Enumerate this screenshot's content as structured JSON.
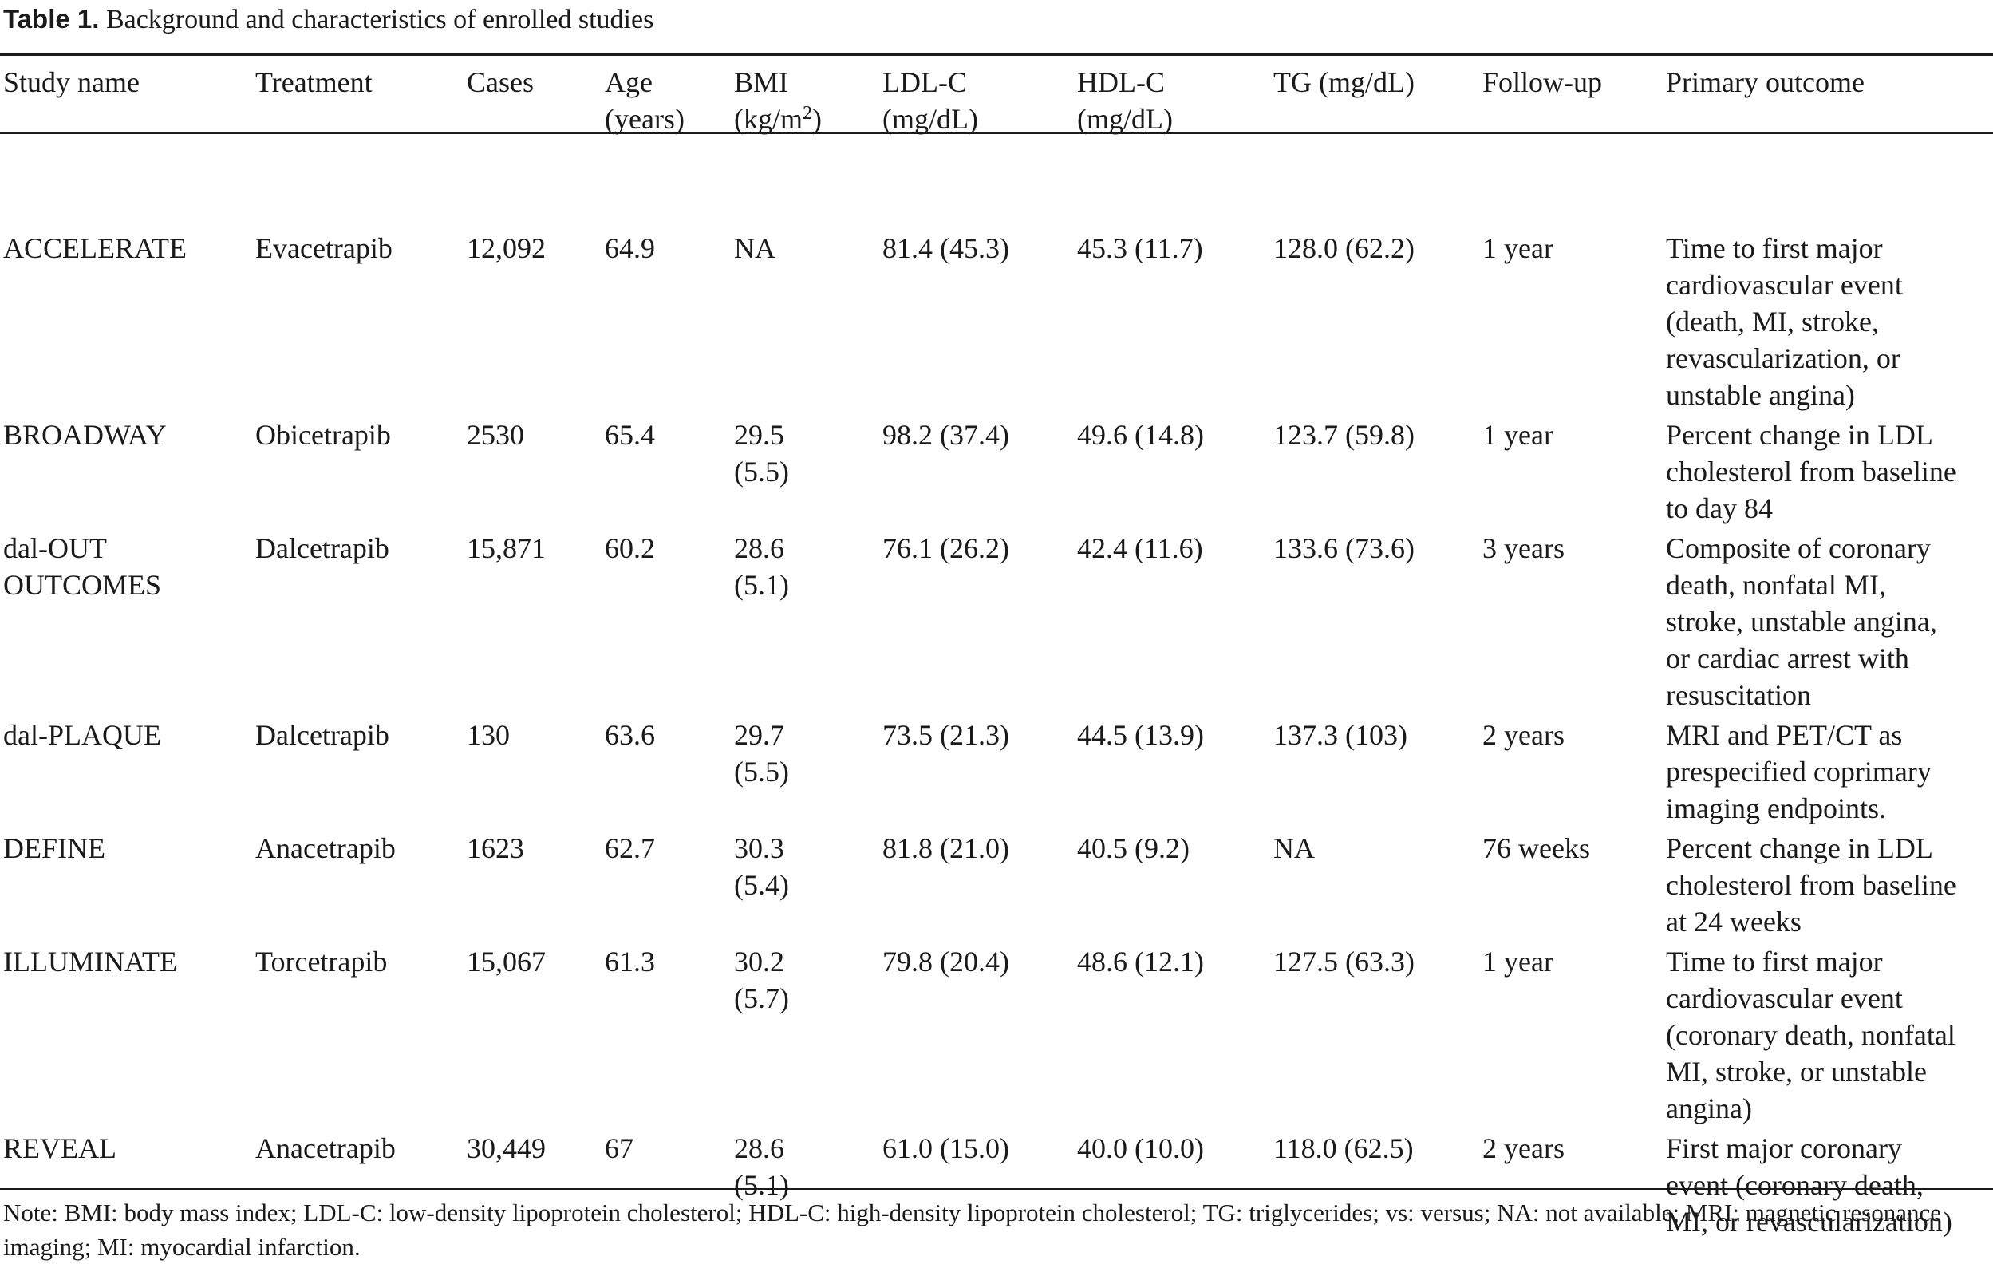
{
  "caption": {
    "label": "Table 1.",
    "title": "Background and characteristics of enrolled studies"
  },
  "columns": [
    {
      "line1": "Study name",
      "line2": ""
    },
    {
      "line1": "Treatment",
      "line2": ""
    },
    {
      "line1": "Cases",
      "line2": ""
    },
    {
      "line1": "Age",
      "line2": "(years)"
    },
    {
      "line1": "BMI",
      "line2": "(kg/m",
      "sup": "2",
      "line2_end": ")"
    },
    {
      "line1": "LDL-C",
      "line2": "(mg/dL)"
    },
    {
      "line1": "HDL-C",
      "line2": "(mg/dL)"
    },
    {
      "line1": "TG (mg/dL)",
      "line2": ""
    },
    {
      "line1": "Follow-up",
      "line2": ""
    },
    {
      "line1": "Primary outcome",
      "line2": ""
    }
  ],
  "rows": [
    {
      "study": [
        "ACCELERATE"
      ],
      "treatment": "Evacetrapib",
      "cases": "12,092",
      "age": "64.9",
      "bmi": [
        "NA"
      ],
      "ldl": "81.4 (45.3)",
      "hdl": "45.3 (11.7)",
      "tg": "128.0 (62.2)",
      "followup": "1 year",
      "outcome": [
        "Time to first major",
        "cardiovascular event",
        "(death, MI, stroke,",
        "revascularization, or",
        "unstable angina)"
      ]
    },
    {
      "study": [
        "BROADWAY"
      ],
      "treatment": "Obicetrapib",
      "cases": "2530",
      "age": "65.4",
      "bmi": [
        "29.5",
        "(5.5)"
      ],
      "ldl": "98.2 (37.4)",
      "hdl": "49.6 (14.8)",
      "tg": "123.7 (59.8)",
      "followup": "1 year",
      "outcome": [
        "Percent change in LDL",
        "cholesterol from baseline",
        "to day 84"
      ]
    },
    {
      "study": [
        "dal-OUT",
        "OUTCOMES"
      ],
      "treatment": "Dalcetrapib",
      "cases": "15,871",
      "age": "60.2",
      "bmi": [
        "28.6",
        "(5.1)"
      ],
      "ldl": "76.1 (26.2)",
      "hdl": "42.4 (11.6)",
      "tg": "133.6 (73.6)",
      "followup": "3 years",
      "outcome": [
        "Composite of coronary",
        "death, nonfatal MI,",
        "stroke, unstable angina,",
        "or cardiac arrest with",
        "resuscitation"
      ]
    },
    {
      "study": [
        "dal-PLAQUE"
      ],
      "treatment": "Dalcetrapib",
      "cases": "130",
      "age": "63.6",
      "bmi": [
        "29.7",
        "(5.5)"
      ],
      "ldl": "73.5 (21.3)",
      "hdl": "44.5 (13.9)",
      "tg": "137.3 (103)",
      "followup": "2 years",
      "outcome": [
        "MRI and PET/CT as",
        "prespecified coprimary",
        "imaging endpoints."
      ]
    },
    {
      "study": [
        "DEFINE"
      ],
      "treatment": "Anacetrapib",
      "cases": "1623",
      "age": "62.7",
      "bmi": [
        "30.3",
        "(5.4)"
      ],
      "ldl": "81.8 (21.0)",
      "hdl": "40.5 (9.2)",
      "tg": "NA",
      "followup": "76 weeks",
      "outcome": [
        "Percent change in LDL",
        "cholesterol from baseline",
        "at 24 weeks"
      ]
    },
    {
      "study": [
        "ILLUMINATE"
      ],
      "treatment": "Torcetrapib",
      "cases": "15,067",
      "age": "61.3",
      "bmi": [
        "30.2",
        "(5.7)"
      ],
      "ldl": "79.8 (20.4)",
      "hdl": "48.6 (12.1)",
      "tg": "127.5 (63.3)",
      "followup": "1 year",
      "outcome": [
        "Time to first major",
        "cardiovascular event",
        "(coronary death, nonfatal",
        "MI, stroke, or unstable",
        "angina)"
      ]
    },
    {
      "study": [
        "REVEAL"
      ],
      "treatment": "Anacetrapib",
      "cases": "30,449",
      "age": "67",
      "bmi": [
        "28.6",
        "(5.1)"
      ],
      "ldl": "61.0 (15.0)",
      "hdl": "40.0 (10.0)",
      "tg": "118.0 (62.5)",
      "followup": "2 years",
      "outcome": [
        "First major coronary",
        "event (coronary death,",
        "MI, or revascularization)"
      ]
    }
  ],
  "note": "Note: BMI: body mass index; LDL-C: low-density lipoprotein cholesterol; HDL-C: high-density lipoprotein cholesterol; TG: triglycerides; vs: versus; NA: not available; MRI: magnetic resonance imaging; MI: myocardial infarction."
}
